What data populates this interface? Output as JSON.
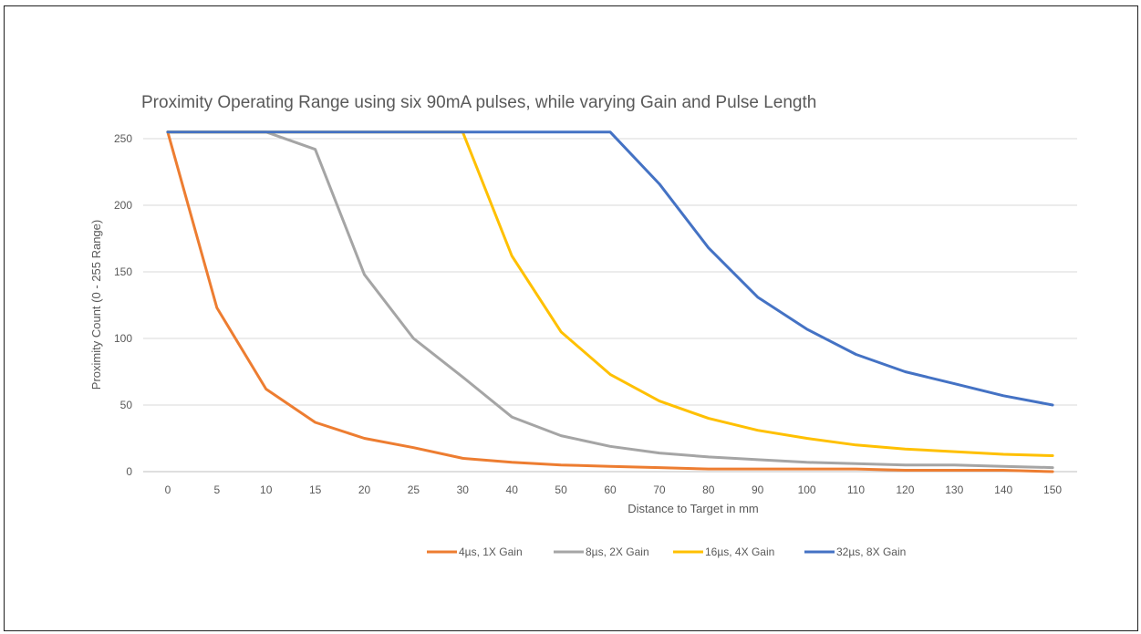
{
  "chart_data": {
    "type": "line",
    "title": "Proximity Operating Range using six 90mA pulses, while varying Gain and Pulse Length",
    "xlabel": "Distance to Target in mm",
    "ylabel": "Proximity Count (0 - 255 Range)",
    "categories": [
      "0",
      "5",
      "10",
      "15",
      "20",
      "25",
      "30",
      "40",
      "50",
      "60",
      "70",
      "80",
      "90",
      "100",
      "110",
      "120",
      "130",
      "140",
      "150"
    ],
    "ylim": [
      0,
      250
    ],
    "yticks": [
      "0",
      "50",
      "100",
      "150",
      "200",
      "250"
    ],
    "grid": true,
    "legend_position": "bottom",
    "series": [
      {
        "name": "4µs, 1X Gain",
        "color": "#ed7d31",
        "values": [
          255,
          123,
          62,
          37,
          25,
          18,
          10,
          7,
          5,
          4,
          3,
          2,
          2,
          2,
          2,
          1,
          1,
          1,
          0
        ]
      },
      {
        "name": "8µs, 2X Gain",
        "color": "#a5a5a5",
        "values": [
          255,
          255,
          255,
          242,
          148,
          100,
          71,
          41,
          27,
          19,
          14,
          11,
          9,
          7,
          6,
          5,
          5,
          4,
          3
        ]
      },
      {
        "name": "16µs, 4X Gain",
        "color": "#ffc000",
        "values": [
          255,
          255,
          255,
          255,
          255,
          255,
          255,
          162,
          105,
          73,
          53,
          40,
          31,
          25,
          20,
          17,
          15,
          13,
          12
        ]
      },
      {
        "name": "32µs, 8X Gain",
        "color": "#4472c4",
        "values": [
          255,
          255,
          255,
          255,
          255,
          255,
          255,
          255,
          255,
          255,
          216,
          168,
          131,
          107,
          88,
          75,
          66,
          57,
          50
        ]
      }
    ]
  }
}
